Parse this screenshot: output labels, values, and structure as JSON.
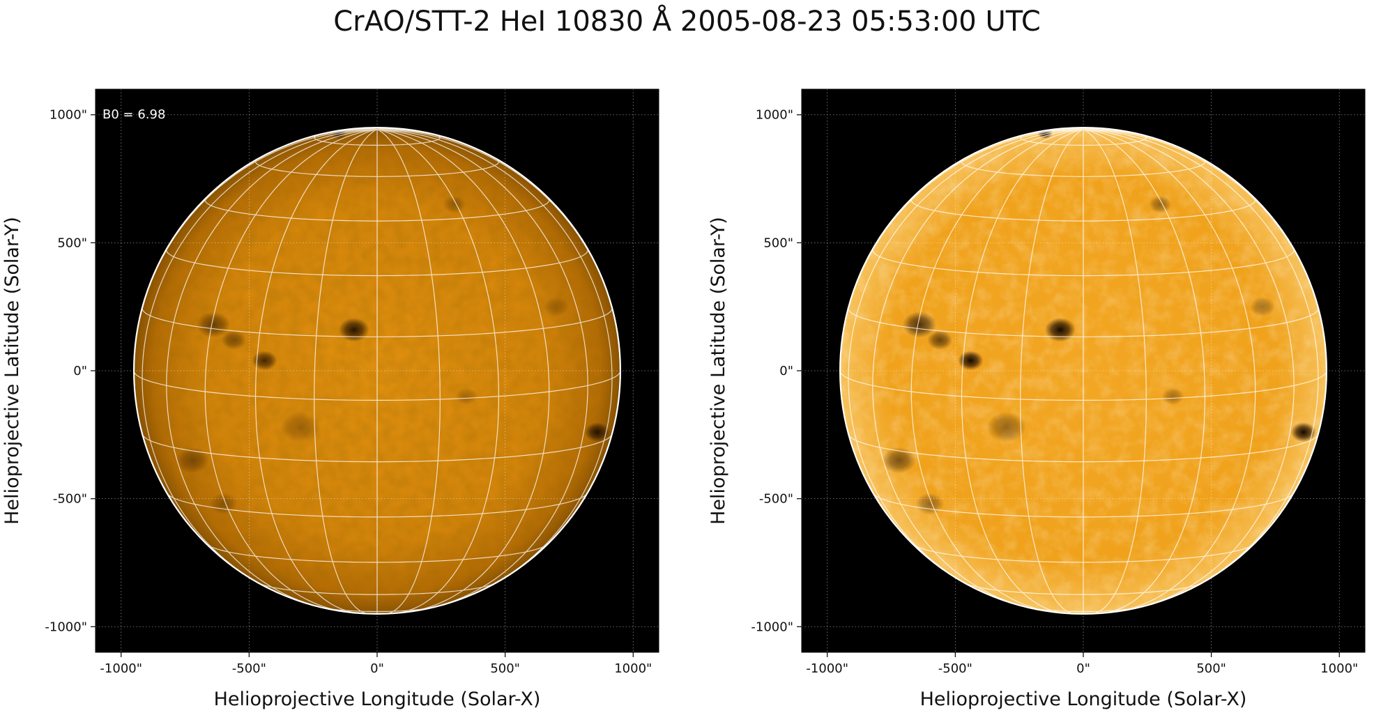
{
  "figure": {
    "title": "CrAO/STT-2 HeI 10830 Å 2005-08-23 05:53:00 UTC"
  },
  "colors": {
    "background": "#000000",
    "limb": "#ffffff",
    "grid": "#ffffff",
    "disk_left": "#d9860b",
    "disk_right": "#f0a31f",
    "feature": "#1a0d00"
  },
  "panels": [
    {
      "name": "left",
      "annotation": "B0 = 6.98",
      "xlabel": "Helioprojective Longitude (Solar-X)",
      "ylabel": "Helioprojective Latitude (Solar-Y)",
      "xticks": [
        "-1000\"",
        "-500\"",
        "0\"",
        "500\"",
        "1000\""
      ],
      "yticks": [
        "1000\"",
        "500\"",
        "0\"",
        "-500\"",
        "-1000\""
      ],
      "xlim": [
        -1100,
        1100
      ],
      "ylim": [
        -1100,
        1100
      ],
      "contrast": "normal"
    },
    {
      "name": "right",
      "annotation": "",
      "xlabel": "Helioprojective Longitude (Solar-X)",
      "ylabel": "Helioprojective Latitude (Solar-Y)",
      "xticks": [
        "-1000\"",
        "-500\"",
        "0\"",
        "500\"",
        "1000\""
      ],
      "yticks": [
        "1000\"",
        "500\"",
        "0\"",
        "-500\"",
        "-1000\""
      ],
      "xlim": [
        -1100,
        1100
      ],
      "ylim": [
        -1100,
        1100
      ],
      "contrast": "enhanced"
    }
  ],
  "chart_data": {
    "type": "heatmap",
    "title": "CrAO/STT-2 HeI 10830 Å 2005-08-23 05:53:00 UTC",
    "solar_radius_arcsec": 950,
    "b0_deg": 6.98,
    "grid_spacing_deg": 15,
    "axis_tick_values": [
      -1000,
      -500,
      0,
      500,
      1000
    ],
    "features": [
      {
        "x": -90,
        "y": 160,
        "size": 55,
        "strength": 0.9
      },
      {
        "x": -440,
        "y": 40,
        "size": 45,
        "strength": 0.75
      },
      {
        "x": -640,
        "y": 180,
        "size": 60,
        "strength": 0.55
      },
      {
        "x": -560,
        "y": 120,
        "size": 45,
        "strength": 0.45
      },
      {
        "x": 860,
        "y": -240,
        "size": 45,
        "strength": 0.9
      },
      {
        "x": -150,
        "y": 930,
        "size": 28,
        "strength": 0.85
      },
      {
        "x": -720,
        "y": -350,
        "size": 60,
        "strength": 0.4
      },
      {
        "x": -300,
        "y": -220,
        "size": 70,
        "strength": 0.3
      },
      {
        "x": 300,
        "y": 650,
        "size": 40,
        "strength": 0.3
      },
      {
        "x": 700,
        "y": 250,
        "size": 45,
        "strength": 0.25
      },
      {
        "x": -600,
        "y": -520,
        "size": 50,
        "strength": 0.3
      },
      {
        "x": 350,
        "y": -100,
        "size": 40,
        "strength": 0.25
      }
    ]
  }
}
